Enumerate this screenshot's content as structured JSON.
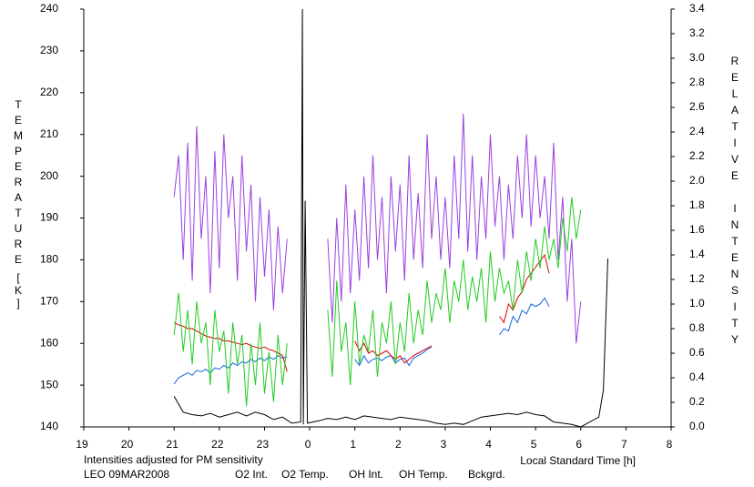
{
  "chart_data": {
    "type": "line",
    "ylabel": "TEMPERATURE",
    "yunit": "[K]",
    "y2label": "RELATIVE INTENSITY",
    "xlabel": "Local Standard Time [h]",
    "note": "Intensities adjusted for PM sensitivity",
    "note_color": "#22bb22",
    "site": "LEO 09MAR2008",
    "xlim": [
      19,
      32
    ],
    "xticks": [
      19,
      20,
      21,
      22,
      23,
      {
        "value": 24,
        "label": "0"
      },
      {
        "value": 25,
        "label": "1"
      },
      {
        "value": 26,
        "label": "2"
      },
      {
        "value": 27,
        "label": "3"
      },
      {
        "value": 28,
        "label": "4"
      },
      {
        "value": 29,
        "label": "5"
      },
      {
        "value": 30,
        "label": "6"
      },
      {
        "value": 31,
        "label": "7"
      },
      {
        "value": 32,
        "label": "8"
      }
    ],
    "ylim": [
      140,
      240
    ],
    "yticks": [
      140,
      150,
      160,
      170,
      180,
      190,
      200,
      210,
      220,
      230,
      240
    ],
    "y2lim": [
      0,
      3.4
    ],
    "y2ticks": [
      {
        "value": 0,
        "label": "0.0"
      },
      0.2,
      0.4,
      0.6,
      0.8,
      {
        "value": 1,
        "label": "1.0"
      },
      1.2,
      1.4,
      1.6,
      1.8,
      {
        "value": 2,
        "label": "2.0"
      },
      2.2,
      2.4,
      2.6,
      2.8,
      {
        "value": 3,
        "label": "3.0"
      },
      3.2,
      3.4
    ],
    "series": [
      {
        "name": "O2 Int.",
        "color": "#1166dd",
        "axis": "y2",
        "x": [
          21.0,
          21.1,
          21.2,
          21.3,
          21.4,
          21.5,
          21.6,
          21.7,
          21.8,
          21.9,
          22.0,
          22.1,
          22.2,
          22.3,
          22.4,
          22.5,
          22.6,
          22.7,
          22.8,
          22.9,
          23.0,
          23.1,
          23.2,
          23.3,
          23.4,
          23.5,
          24.0,
          25.0,
          25.1,
          25.2,
          25.3,
          25.4,
          25.5,
          25.6,
          25.7,
          25.8,
          25.9,
          26.0,
          26.1,
          26.2,
          26.3,
          26.4,
          26.5,
          26.6,
          26.7,
          27.5,
          28.2,
          28.3,
          28.4,
          28.5,
          28.6,
          28.7,
          28.8,
          28.9,
          29.0,
          29.1,
          29.2,
          29.3
        ],
        "values": [
          0.35,
          0.4,
          0.42,
          0.44,
          0.42,
          0.46,
          0.45,
          0.47,
          0.44,
          0.48,
          0.47,
          0.5,
          0.48,
          0.52,
          0.5,
          0.53,
          0.52,
          0.55,
          0.53,
          0.56,
          0.54,
          0.57,
          0.55,
          0.58,
          0.56,
          0.57,
          null,
          0.55,
          0.5,
          0.58,
          0.52,
          0.55,
          0.56,
          0.54,
          0.57,
          0.58,
          0.52,
          0.55,
          0.56,
          0.5,
          0.56,
          0.58,
          0.6,
          0.63,
          0.65,
          null,
          0.75,
          0.8,
          0.78,
          0.9,
          0.85,
          0.95,
          0.92,
          1.0,
          0.98,
          1.0,
          1.05,
          0.98
        ]
      },
      {
        "name": "O2 Temp.",
        "color": "#9b40e0",
        "axis": "y",
        "x": [
          21.0,
          21.1,
          21.2,
          21.3,
          21.4,
          21.5,
          21.6,
          21.7,
          21.8,
          21.9,
          22.0,
          22.1,
          22.2,
          22.3,
          22.4,
          22.5,
          22.6,
          22.7,
          22.8,
          22.9,
          23.0,
          23.1,
          23.2,
          23.3,
          23.4,
          23.5,
          24.0,
          24.4,
          24.5,
          24.6,
          24.7,
          24.8,
          24.9,
          25.0,
          25.1,
          25.2,
          25.3,
          25.4,
          25.5,
          25.6,
          25.7,
          25.8,
          25.9,
          26.0,
          26.1,
          26.2,
          26.3,
          26.4,
          26.5,
          26.6,
          26.7,
          26.8,
          26.9,
          27.0,
          27.1,
          27.2,
          27.3,
          27.4,
          27.5,
          27.6,
          27.7,
          27.8,
          27.9,
          28.0,
          28.1,
          28.2,
          28.3,
          28.4,
          28.5,
          28.6,
          28.7,
          28.8,
          28.9,
          29.0,
          29.1,
          29.2,
          29.3,
          29.4,
          29.5,
          29.6,
          29.7,
          29.8,
          29.9,
          30.0
        ],
        "values": [
          195,
          205,
          180,
          208,
          175,
          212,
          185,
          200,
          172,
          206,
          178,
          210,
          190,
          200,
          175,
          205,
          182,
          198,
          170,
          195,
          176,
          192,
          168,
          188,
          172,
          185,
          null,
          185,
          165,
          190,
          170,
          198,
          172,
          192,
          175,
          200,
          178,
          205,
          180,
          195,
          172,
          200,
          182,
          198,
          175,
          205,
          180,
          196,
          178,
          210,
          185,
          200,
          180,
          195,
          178,
          205,
          185,
          215,
          182,
          205,
          180,
          200,
          185,
          210,
          188,
          200,
          180,
          198,
          185,
          205,
          190,
          210,
          188,
          205,
          190,
          200,
          185,
          208,
          180,
          195,
          170,
          185,
          160,
          170
        ]
      },
      {
        "name": "OH Int.",
        "color": "#dd0000",
        "axis": "y2",
        "x": [
          21.0,
          21.1,
          21.2,
          21.3,
          21.4,
          21.5,
          21.6,
          21.7,
          21.8,
          21.9,
          22.0,
          22.1,
          22.2,
          22.3,
          22.4,
          22.5,
          22.6,
          22.7,
          22.8,
          22.9,
          23.0,
          23.1,
          23.2,
          23.3,
          23.4,
          23.5,
          24.0,
          25.0,
          25.1,
          25.2,
          25.3,
          25.4,
          25.5,
          25.6,
          25.7,
          25.8,
          25.9,
          26.0,
          26.1,
          26.2,
          26.3,
          26.4,
          26.5,
          26.6,
          26.7,
          27.5,
          28.2,
          28.3,
          28.4,
          28.5,
          28.6,
          28.7,
          28.8,
          28.9,
          29.0,
          29.1,
          29.2,
          29.3
        ],
        "values": [
          0.85,
          0.83,
          0.82,
          0.8,
          0.8,
          0.78,
          0.76,
          0.74,
          0.73,
          0.72,
          0.72,
          0.7,
          0.7,
          0.69,
          0.68,
          0.67,
          0.68,
          0.66,
          0.65,
          0.64,
          0.65,
          0.63,
          0.62,
          0.6,
          0.58,
          0.45,
          null,
          0.7,
          0.62,
          0.68,
          0.6,
          0.62,
          0.58,
          0.6,
          0.62,
          0.58,
          0.55,
          0.58,
          0.52,
          0.55,
          0.58,
          0.6,
          0.62,
          0.64,
          0.66,
          null,
          0.9,
          0.85,
          1.0,
          0.95,
          1.05,
          1.1,
          1.2,
          1.25,
          1.3,
          1.35,
          1.4,
          1.25
        ]
      },
      {
        "name": "OH Temp.",
        "color": "#22cc22",
        "axis": "y",
        "x": [
          21.0,
          21.1,
          21.2,
          21.3,
          21.4,
          21.5,
          21.6,
          21.7,
          21.8,
          21.9,
          22.0,
          22.1,
          22.2,
          22.3,
          22.4,
          22.5,
          22.6,
          22.7,
          22.8,
          22.9,
          23.0,
          23.1,
          23.2,
          23.3,
          23.4,
          23.5,
          24.0,
          24.4,
          24.5,
          24.6,
          24.7,
          24.8,
          24.9,
          25.0,
          25.1,
          25.2,
          25.3,
          25.4,
          25.5,
          25.6,
          25.7,
          25.8,
          25.9,
          26.0,
          26.1,
          26.2,
          26.3,
          26.4,
          26.5,
          26.6,
          26.7,
          26.8,
          26.9,
          27.0,
          27.1,
          27.2,
          27.3,
          27.4,
          27.5,
          27.6,
          27.7,
          27.8,
          27.9,
          28.0,
          28.1,
          28.2,
          28.3,
          28.4,
          28.5,
          28.6,
          28.7,
          28.8,
          28.9,
          29.0,
          29.1,
          29.2,
          29.3,
          29.4,
          29.5,
          29.6,
          29.7,
          29.8,
          29.9,
          30.0
        ],
        "values": [
          162,
          172,
          158,
          168,
          155,
          170,
          160,
          165,
          150,
          168,
          158,
          163,
          148,
          165,
          155,
          162,
          145,
          160,
          150,
          165,
          148,
          158,
          146,
          162,
          150,
          160,
          null,
          168,
          152,
          175,
          158,
          165,
          150,
          170,
          155,
          162,
          158,
          168,
          152,
          165,
          160,
          170,
          155,
          165,
          158,
          172,
          160,
          168,
          162,
          175,
          165,
          172,
          168,
          178,
          165,
          175,
          170,
          180,
          168,
          176,
          170,
          178,
          165,
          182,
          170,
          178,
          172,
          175,
          168,
          180,
          172,
          182,
          175,
          185,
          178,
          188,
          180,
          185,
          178,
          190,
          182,
          195,
          185,
          192
        ]
      },
      {
        "name": "Bckgrd.",
        "color": "#000000",
        "axis": "y2",
        "x": [
          21.0,
          21.2,
          21.4,
          21.6,
          21.8,
          22.0,
          22.2,
          22.4,
          22.6,
          22.8,
          23.0,
          23.2,
          23.4,
          23.6,
          23.8,
          23.84,
          23.86,
          23.9,
          23.95,
          24.2,
          24.4,
          24.6,
          24.8,
          25.0,
          25.2,
          25.4,
          25.6,
          25.8,
          26.0,
          26.2,
          26.4,
          26.6,
          26.8,
          27.0,
          27.2,
          27.4,
          27.6,
          27.8,
          28.0,
          28.2,
          28.4,
          28.6,
          28.8,
          29.0,
          29.2,
          29.4,
          29.6,
          29.8,
          30.0,
          30.2,
          30.4,
          30.5,
          30.6
        ],
        "values": [
          0.25,
          0.12,
          0.1,
          0.09,
          0.11,
          0.08,
          0.1,
          0.12,
          0.09,
          0.12,
          0.1,
          0.06,
          0.08,
          0.03,
          0.04,
          3.4,
          0.02,
          1.84,
          0.03,
          0.05,
          0.07,
          0.06,
          0.08,
          0.06,
          0.09,
          0.08,
          0.07,
          0.06,
          0.08,
          0.07,
          0.06,
          0.05,
          0.03,
          0.02,
          0.03,
          0.02,
          0.05,
          0.08,
          0.09,
          0.1,
          0.11,
          0.1,
          0.12,
          0.1,
          0.09,
          0.04,
          0.03,
          0.02,
          0,
          0.04,
          0.08,
          0.3,
          1.37
        ]
      }
    ]
  }
}
